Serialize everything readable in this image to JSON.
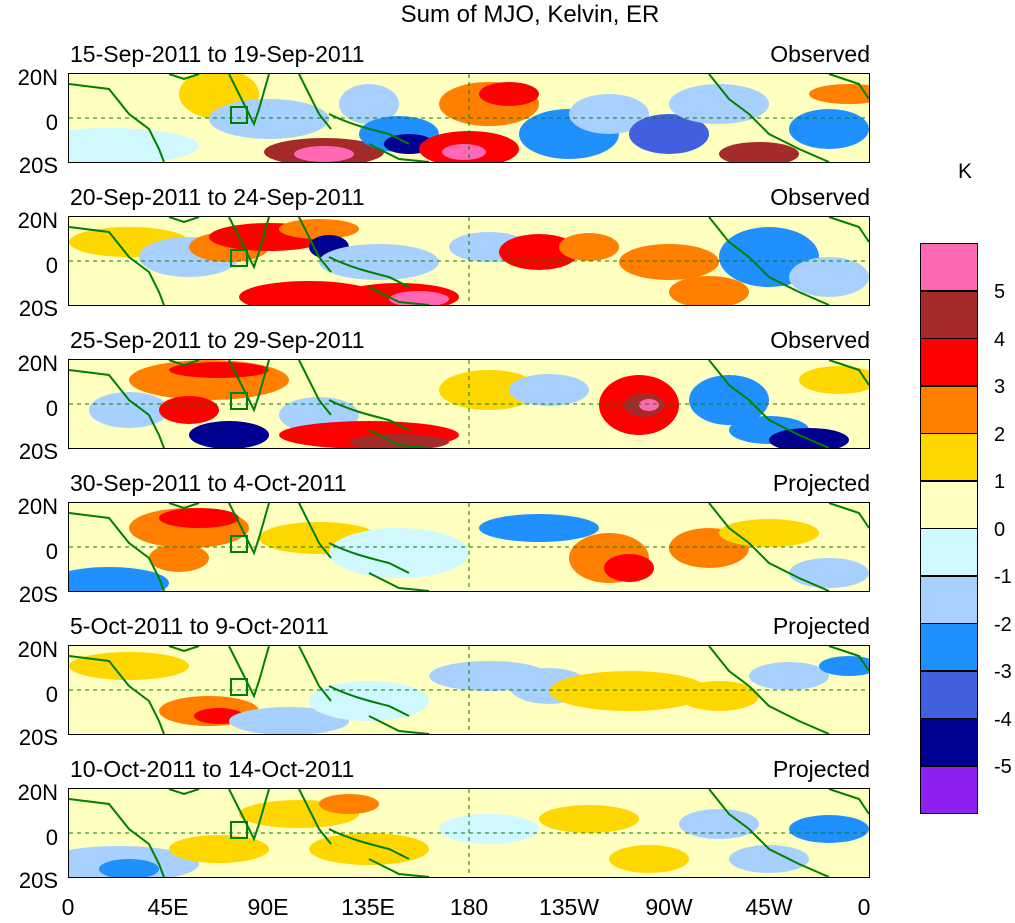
{
  "title": "Sum of MJO, Kelvin, ER",
  "y_axis_labels": [
    "20N",
    "0",
    "20S"
  ],
  "x_axis_labels": [
    "0",
    "45E",
    "90E",
    "135E",
    "180",
    "135W",
    "90W",
    "45W",
    "0"
  ],
  "panels": [
    {
      "period": "15-Sep-2011 to 19-Sep-2011",
      "status": "Observed"
    },
    {
      "period": "20-Sep-2011 to 24-Sep-2011",
      "status": "Observed"
    },
    {
      "period": "25-Sep-2011 to 29-Sep-2011",
      "status": "Observed"
    },
    {
      "period": "30-Sep-2011 to 4-Oct-2011",
      "status": "Projected"
    },
    {
      "period": "5-Oct-2011 to 9-Oct-2011",
      "status": "Projected"
    },
    {
      "period": "10-Oct-2011 to 14-Oct-2011",
      "status": "Projected"
    }
  ],
  "colorbar": {
    "unit": "K",
    "labels": [
      "5",
      "4",
      "3",
      "2",
      "1",
      "0",
      "-1",
      "-2",
      "-3",
      "-4",
      "-5"
    ],
    "colors": [
      "#ff69b4",
      "#a52a2a",
      "#ff0000",
      "#ff7f00",
      "#ffd700",
      "#ffffc0",
      "#d0f8ff",
      "#a8d0ff",
      "#2090ff",
      "#4060e0",
      "#000090",
      "#9020f0"
    ]
  },
  "map_colors": {
    "coast": "#008000",
    "gridline": "#008000",
    "background": "#ffffc0"
  }
}
